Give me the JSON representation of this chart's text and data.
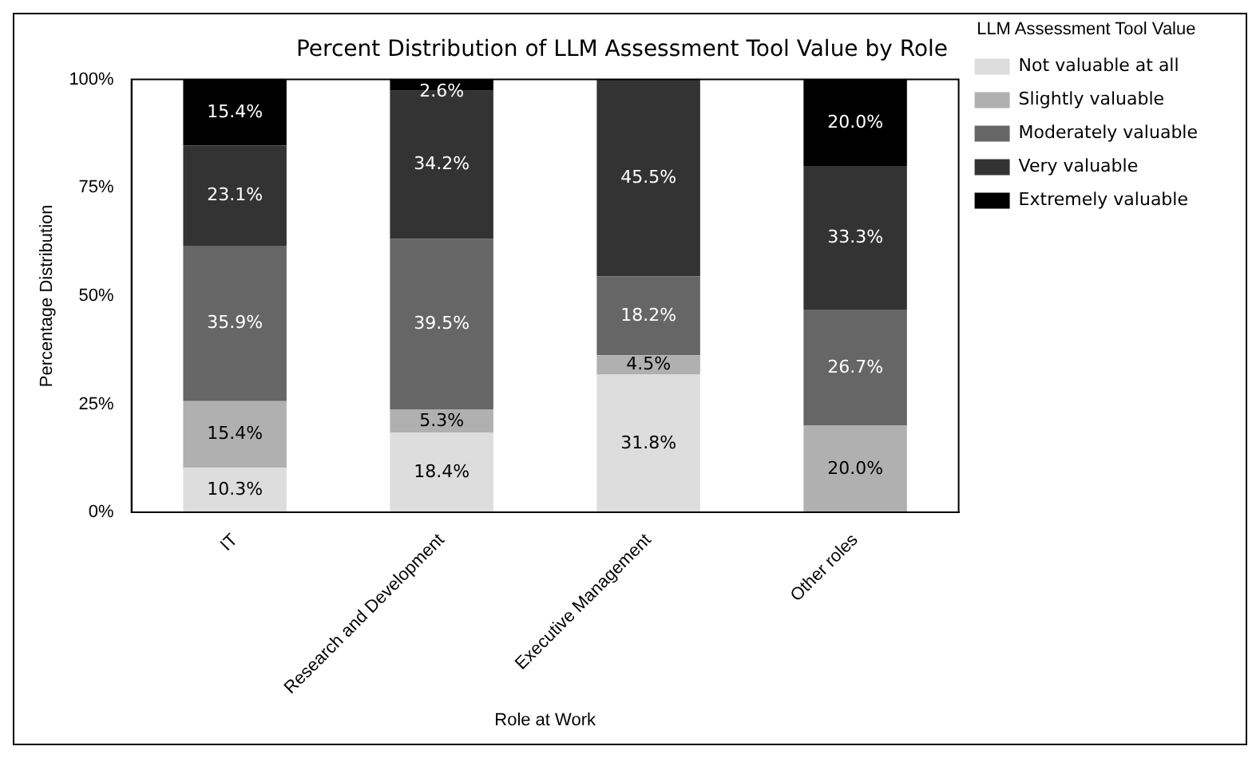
{
  "chart_data": {
    "type": "bar",
    "title": "Percent Distribution of LLM Assessment Tool Value by Role",
    "xlabel": "Role at Work",
    "ylabel": "Percentage Distribution",
    "legend_title": "LLM Assessment Tool Value",
    "categories": [
      "IT",
      "Research and Development",
      "Executive Management",
      "Other roles"
    ],
    "stacked": true,
    "legend": "right",
    "grid": false,
    "ylim": [
      0,
      100
    ],
    "yticks": [
      {
        "value": 0,
        "label": "0%"
      },
      {
        "value": 25,
        "label": "25%"
      },
      {
        "value": 50,
        "label": "50%"
      },
      {
        "value": 75,
        "label": "75%"
      },
      {
        "value": 100,
        "label": "100%"
      }
    ],
    "series": [
      {
        "name": "Not valuable at all",
        "color": "#dddddd",
        "values": [
          10.3,
          18.4,
          31.8,
          null
        ],
        "value_labels": [
          "10.3%",
          "18.4%",
          "31.8%",
          null
        ]
      },
      {
        "name": "Slightly valuable",
        "color": "#b0b0b0",
        "values": [
          15.4,
          5.3,
          4.5,
          20.0
        ],
        "value_labels": [
          "15.4%",
          "5.3%",
          "4.5%",
          "20.0%"
        ]
      },
      {
        "name": "Moderately valuable",
        "color": "#666666",
        "values": [
          35.9,
          39.5,
          18.2,
          26.7
        ],
        "value_labels": [
          "35.9%",
          "39.5%",
          "18.2%",
          "26.7%"
        ]
      },
      {
        "name": "Very valuable",
        "color": "#333333",
        "values": [
          23.1,
          34.2,
          45.5,
          33.3
        ],
        "value_labels": [
          "23.1%",
          "34.2%",
          "45.5%",
          "33.3%"
        ]
      },
      {
        "name": "Extremely valuable",
        "color": "#000000",
        "values": [
          15.4,
          2.6,
          null,
          20.0
        ],
        "value_labels": [
          "15.4%",
          "2.6%",
          null,
          "20.0%"
        ]
      }
    ]
  }
}
